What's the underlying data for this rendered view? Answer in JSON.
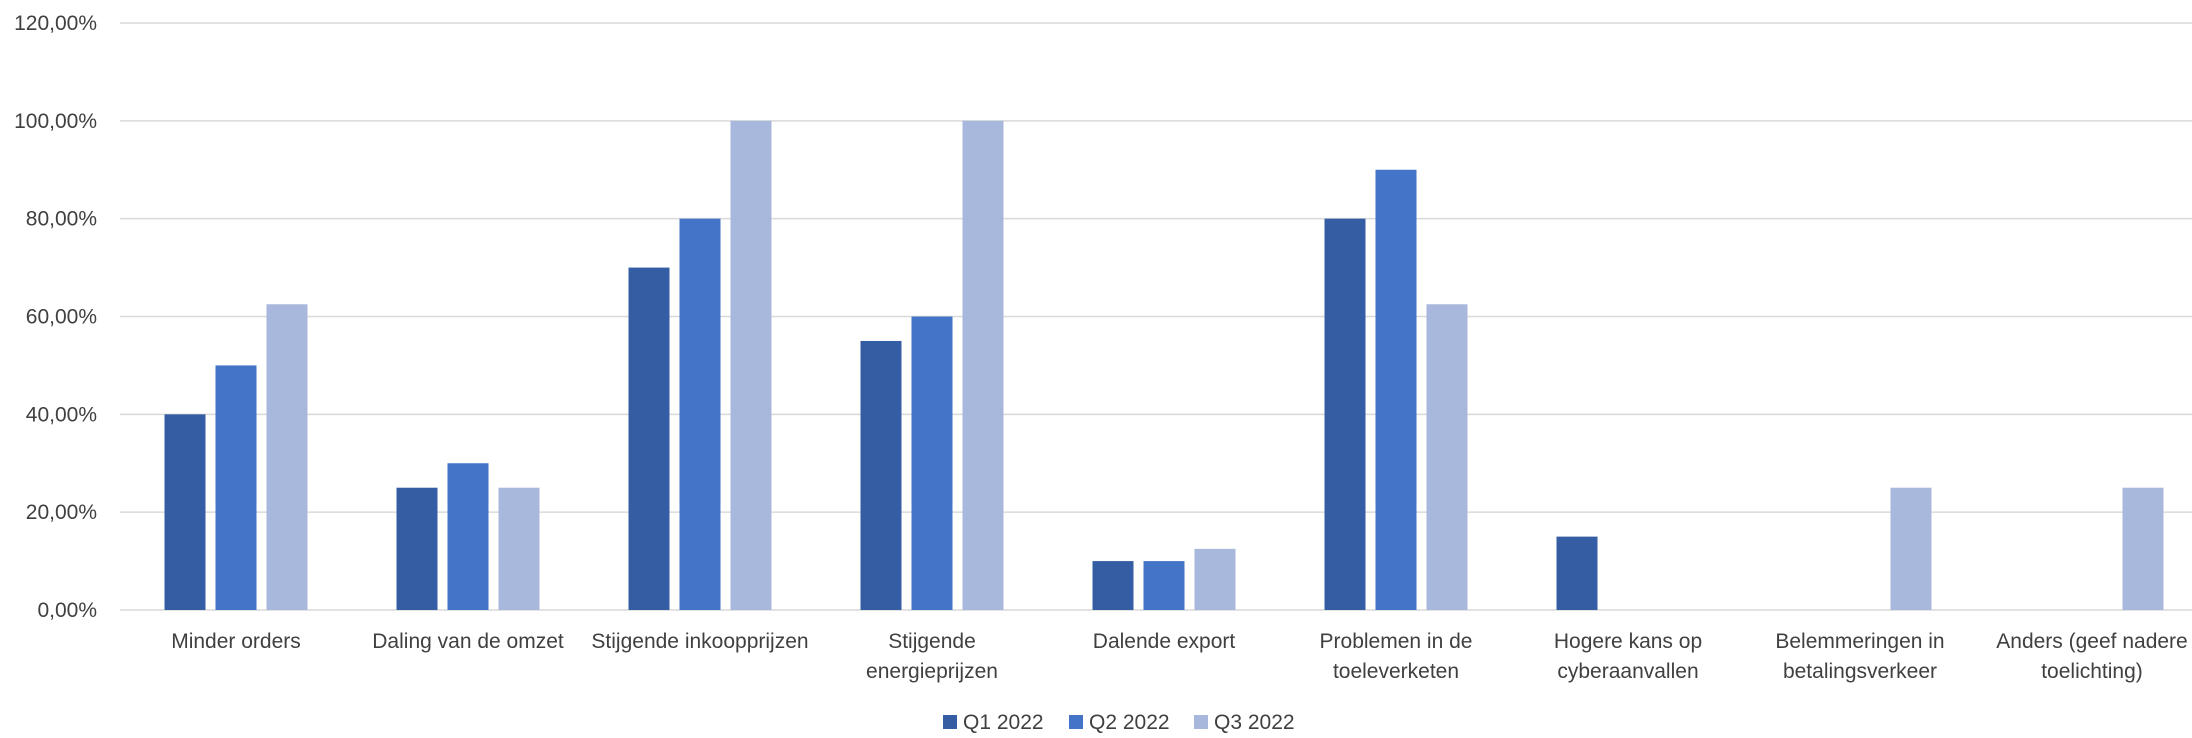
{
  "chart_data": {
    "type": "bar",
    "title": "",
    "xlabel": "",
    "ylabel": "",
    "ylim": [
      0,
      1.2
    ],
    "y_ticks": [
      "0,00%",
      "20,00%",
      "40,00%",
      "60,00%",
      "80,00%",
      "100,00%",
      "120,00%"
    ],
    "grid": true,
    "legend_position": "bottom",
    "categories": [
      [
        "Minder orders"
      ],
      [
        "Daling van de omzet"
      ],
      [
        "Stijgende inkoopprijzen"
      ],
      [
        "Stijgende",
        "energieprijzen"
      ],
      [
        "Dalende export"
      ],
      [
        "Problemen in de",
        "toeleverketen"
      ],
      [
        "Hogere kans op",
        "cyberaanvallen"
      ],
      [
        "Belemmeringen in",
        "betalingsverkeer"
      ],
      [
        "Anders (geef nadere",
        "toelichting)"
      ]
    ],
    "series": [
      {
        "name": "Q1 2022",
        "color": "#345da3",
        "values": [
          0.4,
          0.25,
          0.7,
          0.55,
          0.1,
          0.8,
          0.15,
          0,
          0
        ]
      },
      {
        "name": "Q2 2022",
        "color": "#4474c7",
        "values": [
          0.5,
          0.3,
          0.8,
          0.6,
          0.1,
          0.9,
          0,
          0,
          0
        ]
      },
      {
        "name": "Q3 2022",
        "color": "#a8b7dc",
        "values": [
          0.625,
          0.25,
          1.0,
          1.0,
          0.125,
          0.625,
          0,
          0.25,
          0.25
        ]
      }
    ],
    "colors": {
      "gridline": "#d9d9d9",
      "text": "#404040"
    }
  }
}
